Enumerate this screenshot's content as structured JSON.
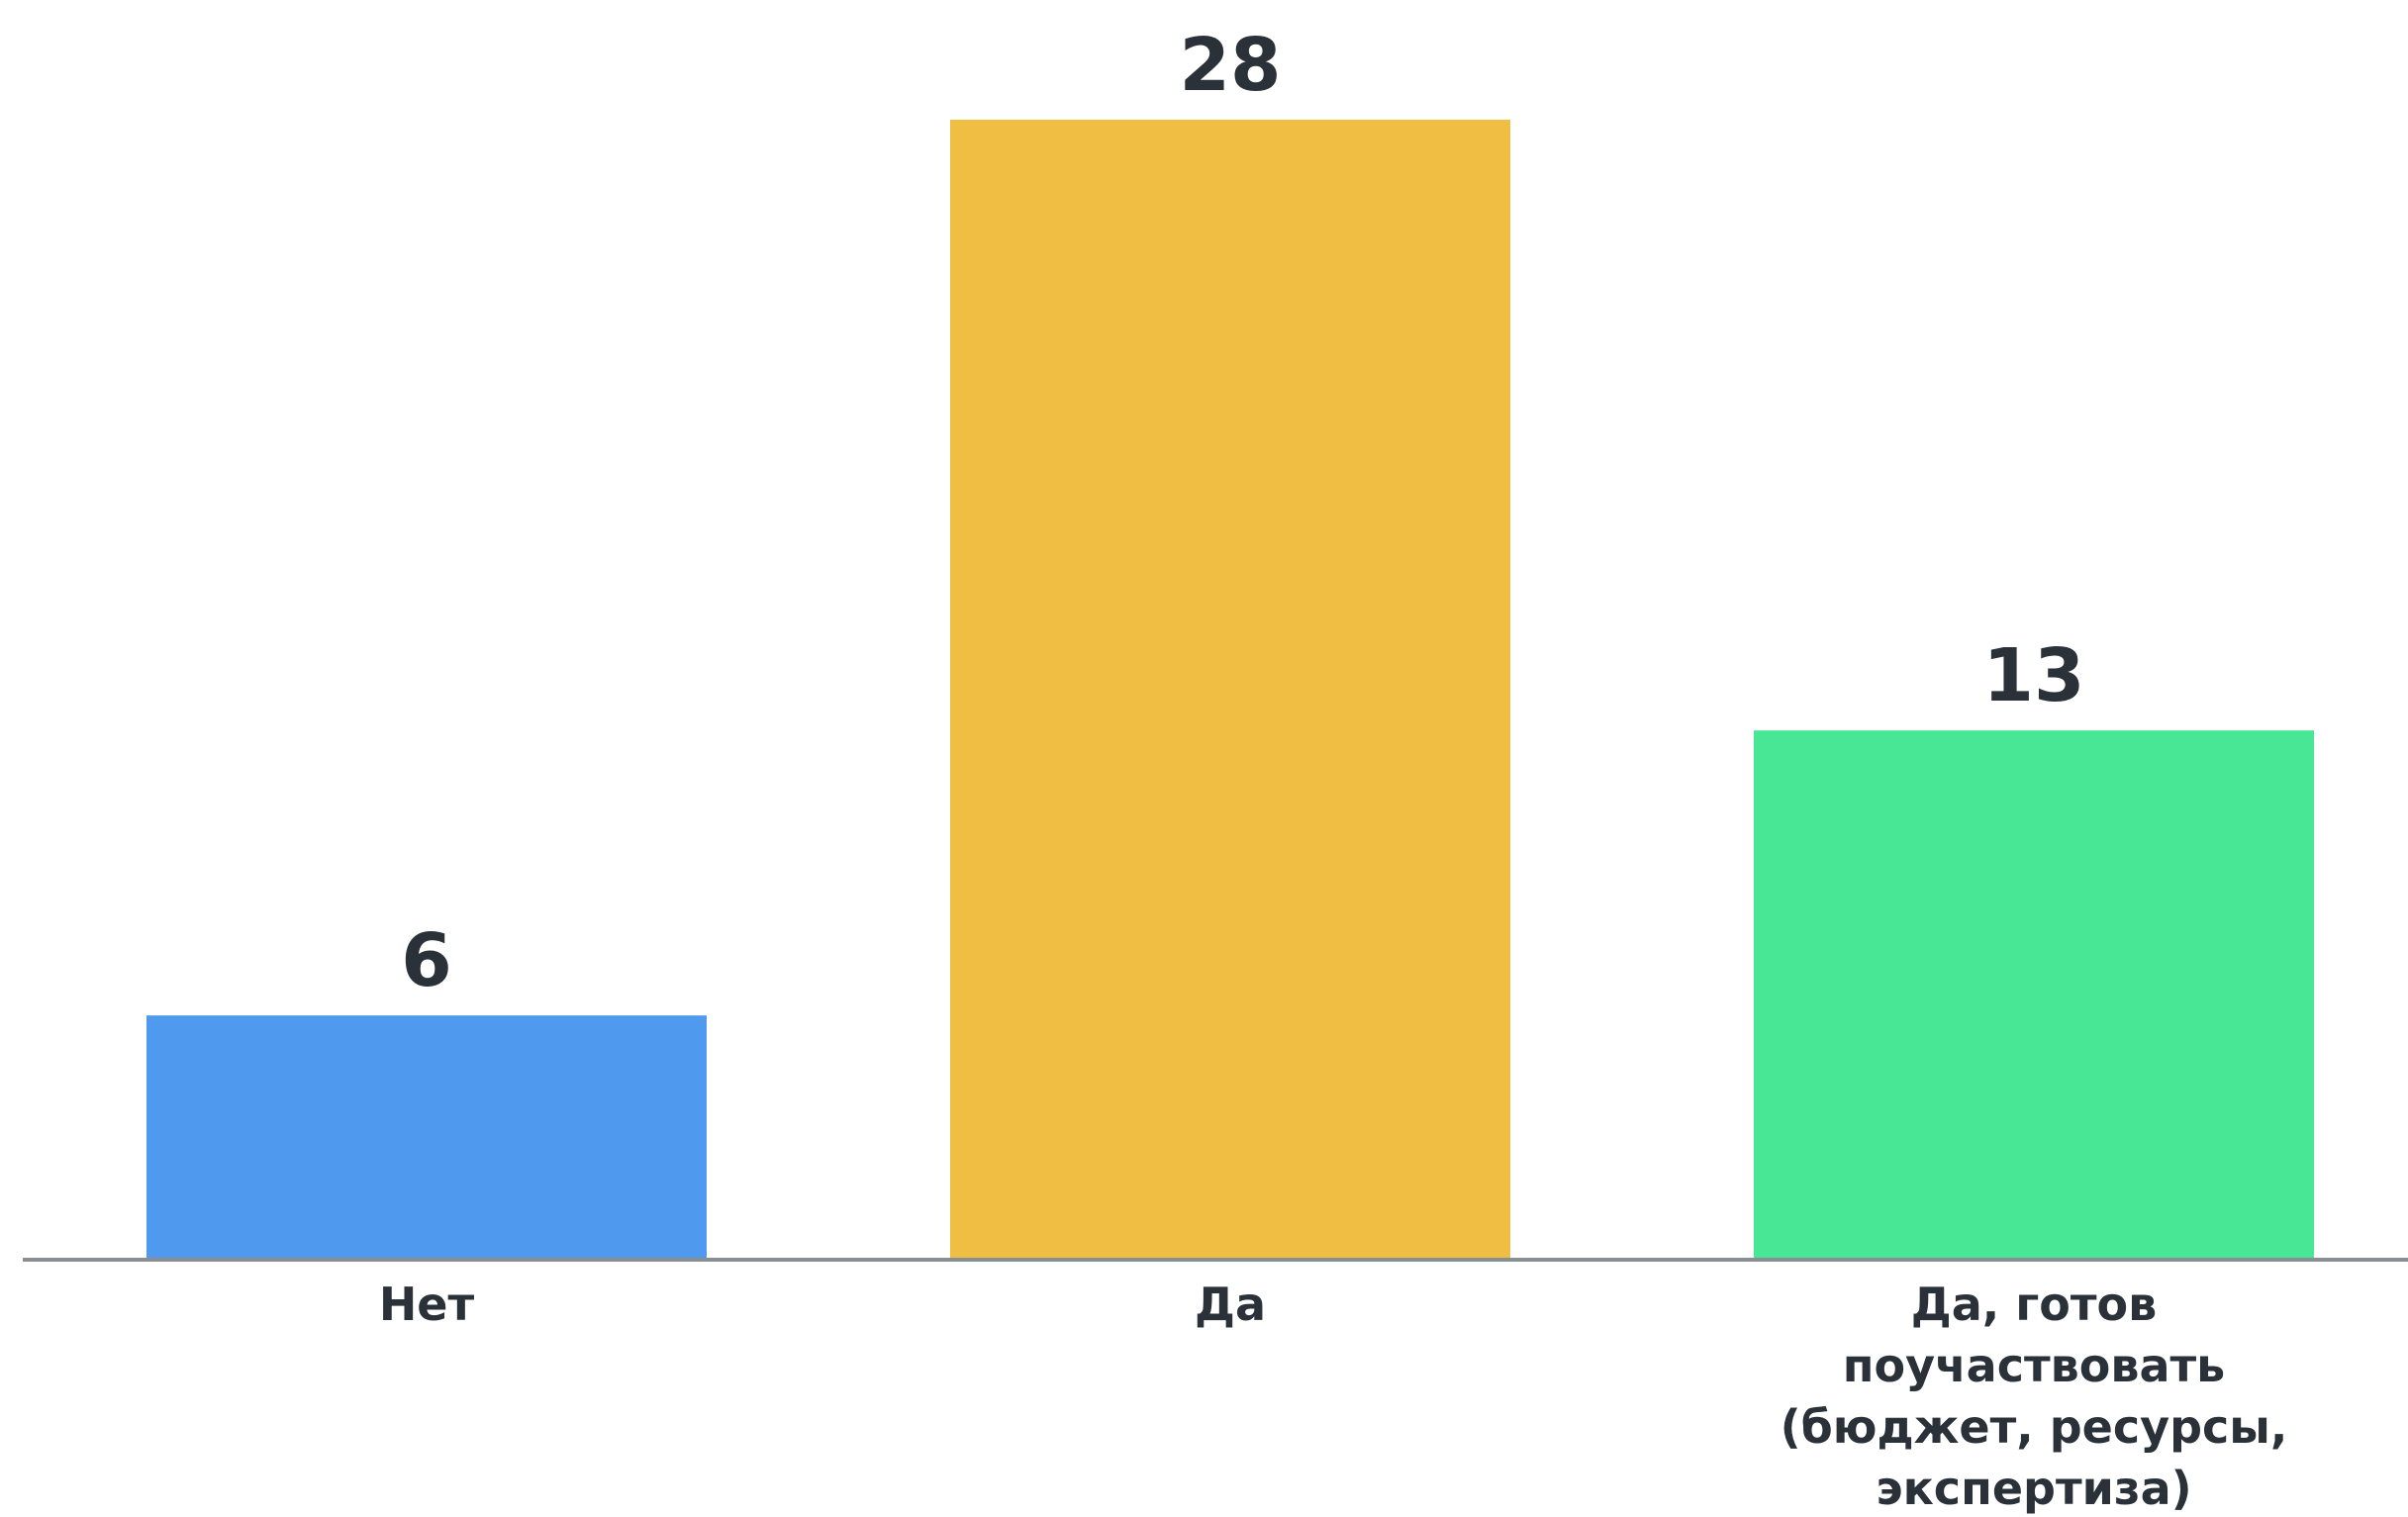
{
  "chart_data": {
    "type": "bar",
    "title": "",
    "xlabel": "",
    "ylabel": "",
    "categories": [
      [
        "Нет"
      ],
      [
        "Да"
      ],
      [
        "Да, готов",
        "поучаствовать",
        "(бюджет, ресурсы,",
        "экспертиза)"
      ]
    ],
    "values": [
      6,
      28,
      13
    ],
    "value_labels": [
      "6",
      "28",
      "13"
    ],
    "colors": [
      "#4f9aef",
      "#f0be42",
      "#47e795"
    ],
    "axis_color": "#8a8f94",
    "ylim": [
      0,
      28
    ],
    "grid": false,
    "legend": "none"
  }
}
